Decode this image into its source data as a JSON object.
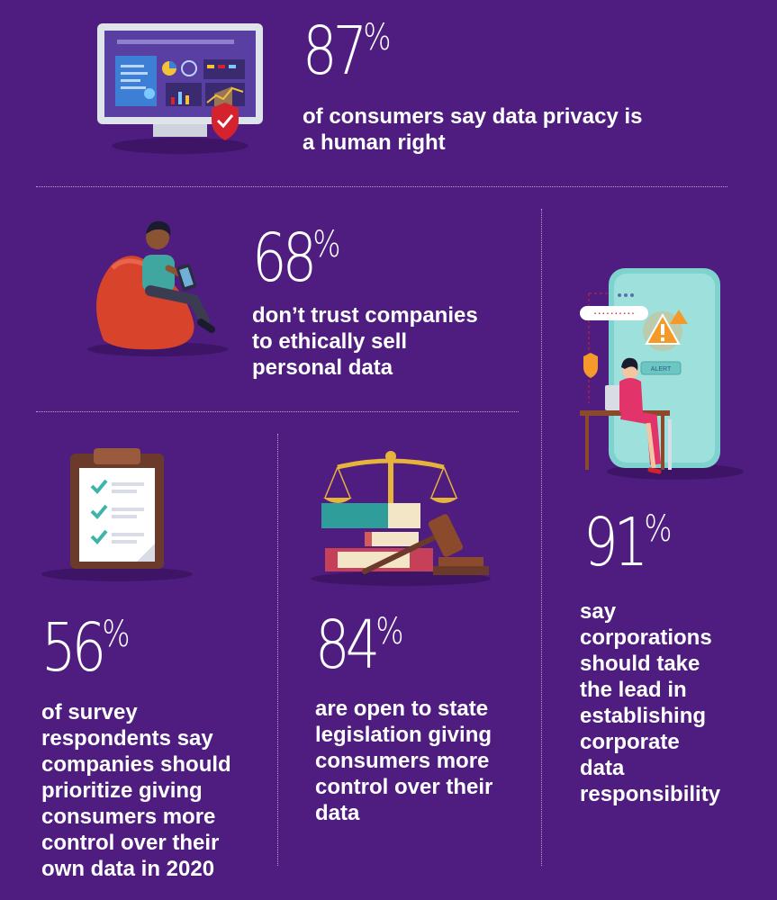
{
  "stats": [
    {
      "id": "s87",
      "number": "87",
      "percent_sign": "%",
      "text_lines": [
        "of consumers say data privacy is",
        "a human right"
      ]
    },
    {
      "id": "s68",
      "number": "68",
      "percent_sign": "%",
      "text_lines": [
        "don’t trust companies",
        "to ethically sell",
        "personal data"
      ]
    },
    {
      "id": "s56",
      "number": "56",
      "percent_sign": "%",
      "text_lines": [
        "of survey",
        "respondents say",
        "companies should",
        "prioritize giving",
        "consumers more",
        "control over their",
        "own data in 2020"
      ]
    },
    {
      "id": "s84",
      "number": "84",
      "percent_sign": "%",
      "text_lines": [
        "are open to state",
        "legislation giving",
        "consumers more",
        "control over their",
        "data"
      ]
    },
    {
      "id": "s91",
      "number": "91",
      "percent_sign": "%",
      "text_lines": [
        "say",
        "corporations",
        "should take",
        "the lead in",
        "establishing",
        "corporate",
        "data",
        "responsibility"
      ]
    }
  ],
  "phone": {
    "password_dots": "··········",
    "alert_label": "ALERT"
  },
  "icons": {
    "monitor": "monitor-shield-icon",
    "beanbag": "person-beanbag-tablet-icon",
    "clipboard": "checklist-clipboard-icon",
    "justice": "scales-gavel-books-icon",
    "phone": "phone-alert-woman-icon"
  },
  "colors": {
    "background": "#4f1d80",
    "text": "#ffffff",
    "divider": "#b9a3d6",
    "accent_red": "#d4232f",
    "teal": "#6cc7c3"
  }
}
